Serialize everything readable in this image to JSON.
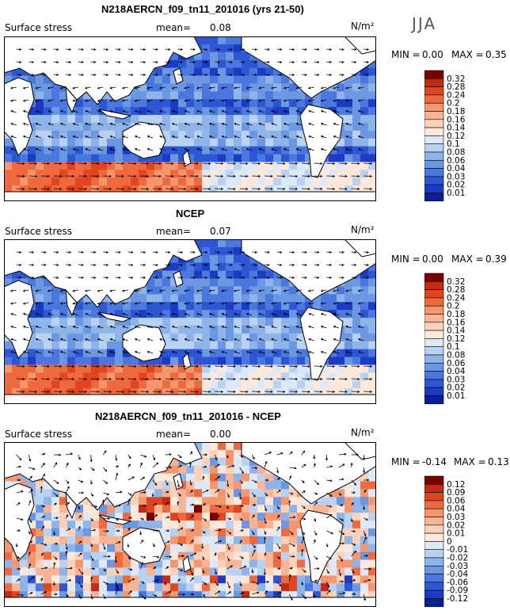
{
  "season": "JJA",
  "chart_data": [
    {
      "type": "heatmap",
      "title": "N218AERCN_f09_tn11_201016 (yrs 21-50)",
      "field_label": "Surface stress",
      "mean_label": "mean=",
      "mean_value": "0.08",
      "units": "N/m²",
      "min_label": "MIN =",
      "min_value": "0.00",
      "max_label": "MAX =",
      "max_value": "0.35",
      "colorbar_levels": [
        "0.32",
        "0.28",
        "0.24",
        "0.2",
        "0.18",
        "0.16",
        "0.14",
        "0.12",
        "0.1",
        "0.08",
        "0.06",
        "0.04",
        "0.03",
        "0.02",
        "0.01"
      ],
      "colorbar_colors": [
        "#7a0000",
        "#c22a14",
        "#e0451f",
        "#ee6a3e",
        "#f5966f",
        "#f8b496",
        "#fbd2b9",
        "#fde8da",
        "#dde9f8",
        "#b9d2f2",
        "#8eb4ea",
        "#6b97e3",
        "#4a78de",
        "#2d57d2",
        "#1b3bc2",
        "#0a1e95"
      ]
    },
    {
      "type": "heatmap",
      "title": "NCEP",
      "field_label": "Surface stress",
      "mean_label": "mean=",
      "mean_value": "0.07",
      "units": "N/m²",
      "min_label": "MIN =",
      "min_value": "0.00",
      "max_label": "MAX =",
      "max_value": "0.39",
      "colorbar_levels": [
        "0.32",
        "0.28",
        "0.24",
        "0.2",
        "0.18",
        "0.16",
        "0.14",
        "0.12",
        "0.1",
        "0.08",
        "0.06",
        "0.04",
        "0.03",
        "0.02",
        "0.01"
      ],
      "colorbar_colors": [
        "#7a0000",
        "#c22a14",
        "#e0451f",
        "#ee6a3e",
        "#f5966f",
        "#f8b496",
        "#fbd2b9",
        "#fde8da",
        "#dde9f8",
        "#b9d2f2",
        "#8eb4ea",
        "#6b97e3",
        "#4a78de",
        "#2d57d2",
        "#1b3bc2",
        "#0a1e95"
      ]
    },
    {
      "type": "heatmap",
      "title": "N218AERCN_f09_tn11_201016 - NCEP",
      "field_label": "Surface stress",
      "mean_label": "mean=",
      "mean_value": "0.00",
      "units": "N/m²",
      "min_label": "MIN =",
      "min_value": "-0.14",
      "max_label": "MAX =",
      "max_value": "0.13",
      "colorbar_levels": [
        "0.12",
        "0.09",
        "0.06",
        "0.04",
        "0.03",
        "0.02",
        "0.01",
        "0",
        "-0.01",
        "-0.02",
        "-0.03",
        "-0.04",
        "-0.06",
        "-0.09",
        "-0.12"
      ],
      "colorbar_colors": [
        "#7a0000",
        "#c22a14",
        "#e0451f",
        "#ee6a3e",
        "#f5966f",
        "#f8b496",
        "#fbd2b9",
        "#fde8da",
        "#dde9f8",
        "#b9d2f2",
        "#8eb4ea",
        "#6b97e3",
        "#4a78de",
        "#2d57d2",
        "#1b3bc2",
        "#0a1e95"
      ]
    }
  ]
}
